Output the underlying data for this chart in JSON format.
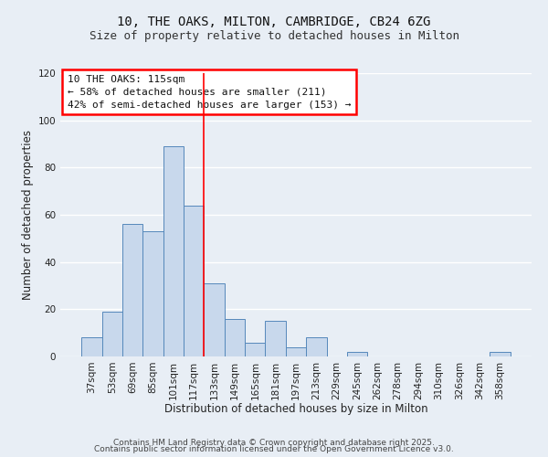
{
  "title": "10, THE OAKS, MILTON, CAMBRIDGE, CB24 6ZG",
  "subtitle": "Size of property relative to detached houses in Milton",
  "xlabel": "Distribution of detached houses by size in Milton",
  "ylabel": "Number of detached properties",
  "bar_color": "#c8d8ec",
  "bar_edge_color": "#5588bb",
  "categories": [
    "37sqm",
    "53sqm",
    "69sqm",
    "85sqm",
    "101sqm",
    "117sqm",
    "133sqm",
    "149sqm",
    "165sqm",
    "181sqm",
    "197sqm",
    "213sqm",
    "229sqm",
    "245sqm",
    "262sqm",
    "278sqm",
    "294sqm",
    "310sqm",
    "326sqm",
    "342sqm",
    "358sqm"
  ],
  "values": [
    8,
    19,
    56,
    53,
    89,
    64,
    31,
    16,
    6,
    15,
    4,
    8,
    0,
    2,
    0,
    0,
    0,
    0,
    0,
    0,
    2
  ],
  "ylim": [
    0,
    120
  ],
  "yticks": [
    0,
    20,
    40,
    60,
    80,
    100,
    120
  ],
  "property_line_x": 5.5,
  "annotation_line1": "10 THE OAKS: 115sqm",
  "annotation_line2": "← 58% of detached houses are smaller (211)",
  "annotation_line3": "42% of semi-detached houses are larger (153) →",
  "footer_line1": "Contains HM Land Registry data © Crown copyright and database right 2025.",
  "footer_line2": "Contains public sector information licensed under the Open Government Licence v3.0.",
  "background_color": "#e8eef5",
  "plot_bg_color": "#e8eef5",
  "grid_color": "#ffffff",
  "title_fontsize": 10,
  "subtitle_fontsize": 9,
  "label_fontsize": 8.5,
  "tick_fontsize": 7.5,
  "annotation_fontsize": 8,
  "footer_fontsize": 6.5
}
